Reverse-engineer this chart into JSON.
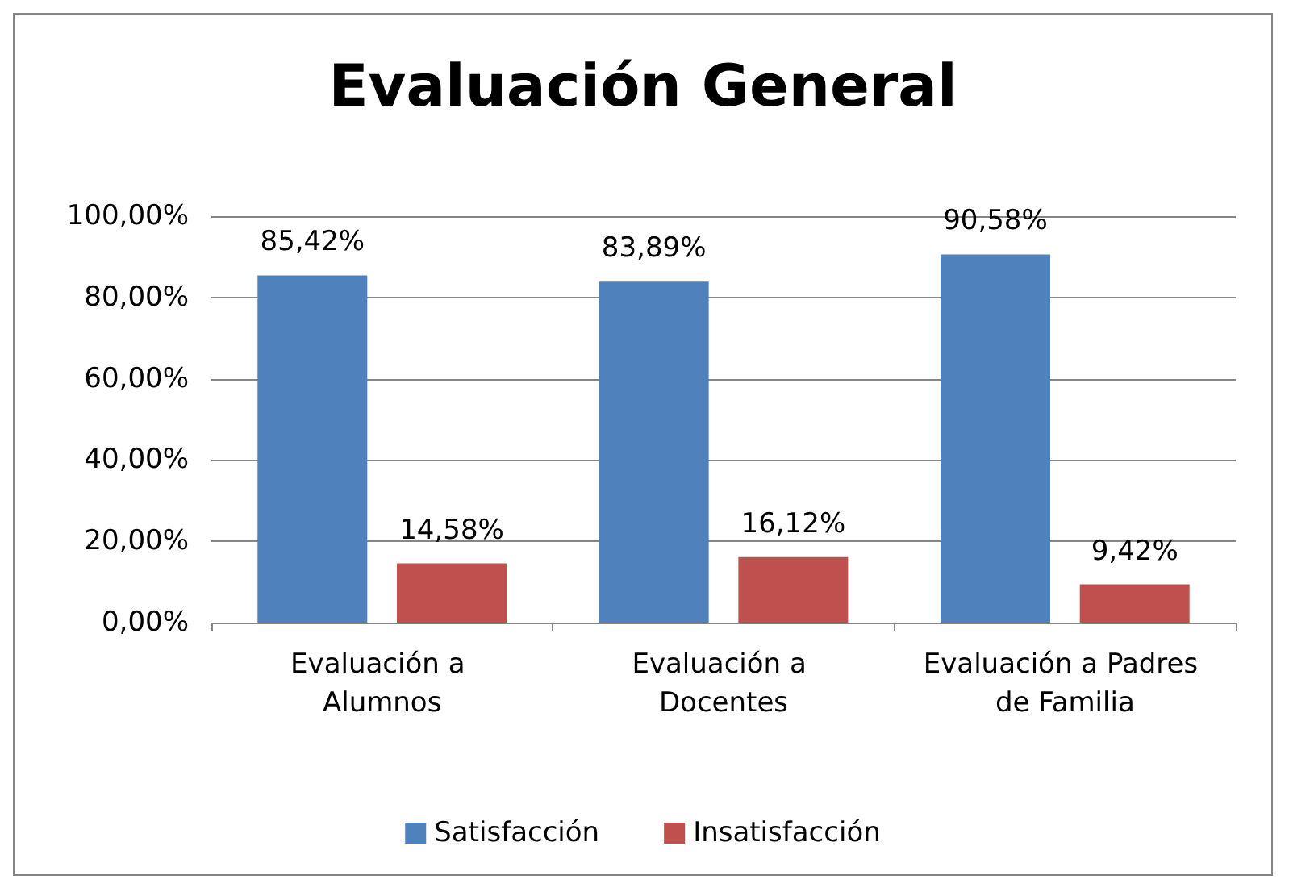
{
  "chart_data": {
    "type": "bar",
    "title": "Evaluación General",
    "categories": [
      "Evaluación a Alumnos",
      "Evaluación a Docentes",
      "Evaluación a Padres de Familia"
    ],
    "series": [
      {
        "name": "Satisfacción",
        "color": "#4f81bd",
        "values": [
          85.42,
          83.89,
          90.58
        ],
        "value_labels": [
          "85,42%",
          "83,89%",
          "90,58%"
        ]
      },
      {
        "name": "Insatisfacción",
        "color": "#c0504d",
        "values": [
          14.58,
          16.12,
          9.42
        ],
        "value_labels": [
          "14,58%",
          "16,12%",
          "9,42%"
        ]
      }
    ],
    "ylim": [
      0,
      100
    ],
    "yticks": [
      {
        "value": 0,
        "label": "0,00%"
      },
      {
        "value": 20,
        "label": "20,00%"
      },
      {
        "value": 40,
        "label": "40,00%"
      },
      {
        "value": 60,
        "label": "60,00%"
      },
      {
        "value": 80,
        "label": "80,00%"
      },
      {
        "value": 100,
        "label": "100,00%"
      }
    ],
    "grid": "y",
    "legend": "bottom"
  }
}
